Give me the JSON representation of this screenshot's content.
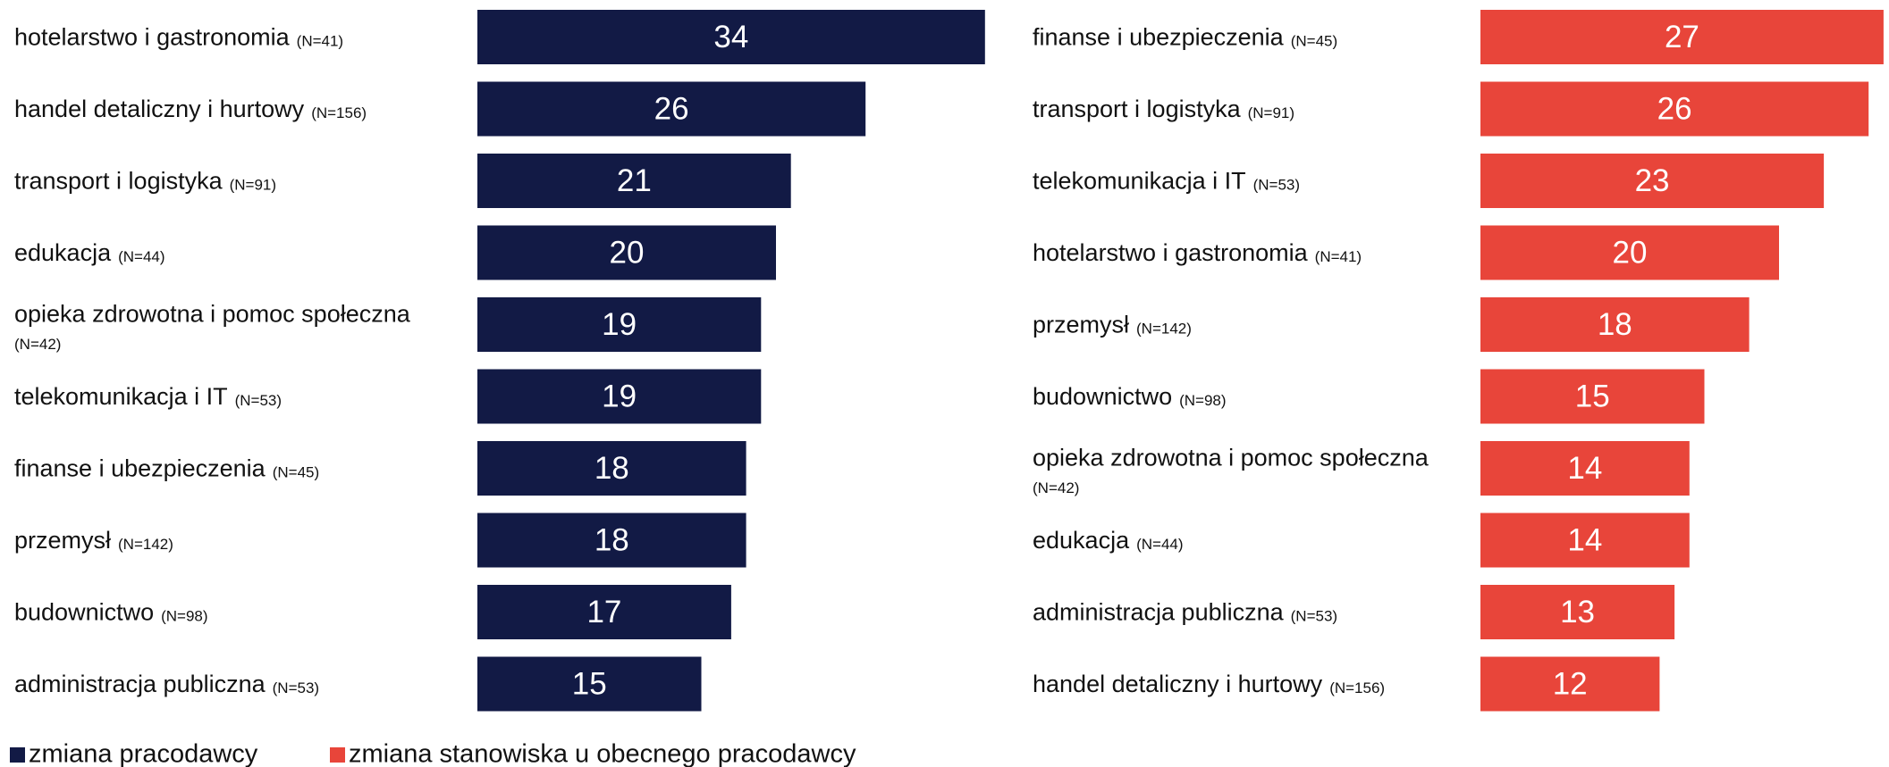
{
  "chart_data": [
    {
      "type": "bar",
      "orientation": "horizontal",
      "categories": [
        "hotelarstwo i gastronomia",
        "handel detaliczny i hurtowy",
        "transport i logistyka",
        "edukacja",
        "opieka zdrowotna i pomoc społeczna",
        "telekomunikacja i IT",
        "finanse i ubezpieczenia",
        "przemysł",
        "budownictwo",
        "administracja publiczna"
      ],
      "sample_sizes": [
        "(N=41)",
        "(N=156)",
        "(N=91)",
        "(N=44)",
        "(N=42)",
        "(N=53)",
        "(N=45)",
        "(N=142)",
        "(N=98)",
        "(N=53)"
      ],
      "series": [
        {
          "name": "zmiana pracodawcy",
          "color": "#121a45",
          "values": [
            34,
            26,
            21,
            20,
            19,
            19,
            18,
            18,
            17,
            15
          ]
        }
      ]
    },
    {
      "type": "bar",
      "orientation": "horizontal",
      "categories": [
        "finanse i ubezpieczenia",
        "transport i logistyka",
        "telekomunikacja i IT",
        "hotelarstwo i gastronomia",
        "przemysł",
        "budownictwo",
        "opieka zdrowotna i pomoc społeczna",
        "edukacja",
        "administracja publiczna",
        "handel detaliczny i hurtowy"
      ],
      "sample_sizes": [
        "(N=45)",
        "(N=91)",
        "(N=53)",
        "(N=41)",
        "(N=142)",
        "(N=98)",
        "(N=42)",
        "(N=44)",
        "(N=53)",
        "(N=156)"
      ],
      "series": [
        {
          "name": "zmiana stanowiska u obecnego pracodawcy",
          "color": "#e8453a",
          "values": [
            27,
            26,
            23,
            20,
            18,
            15,
            14,
            14,
            13,
            12
          ]
        }
      ]
    }
  ]
}
